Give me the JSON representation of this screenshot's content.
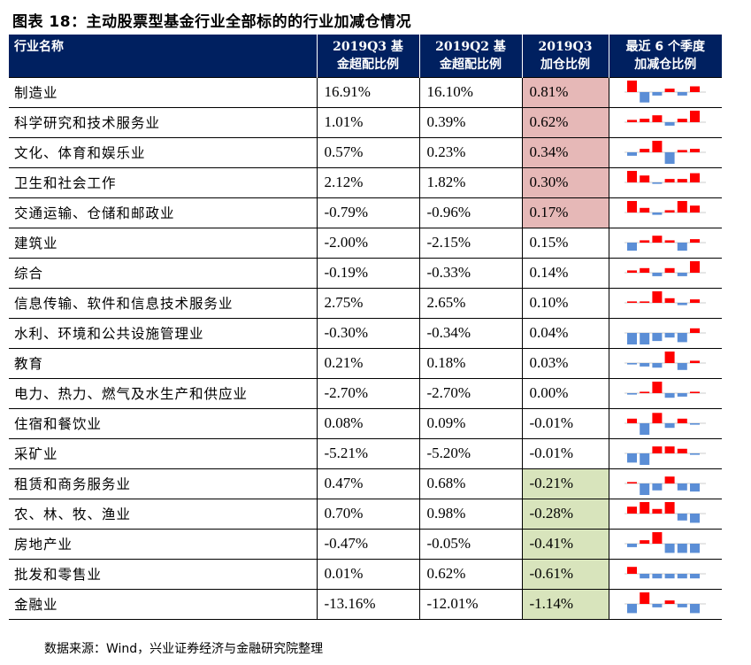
{
  "title": "图表 18：主动股票型基金行业全部标的的行业加减仓情况",
  "headers": {
    "industry": "行业名称",
    "q3_line1": "2019Q3 基",
    "q3_line2": "金超配比例",
    "q2_line1": "2019Q2 基",
    "q2_line2": "金超配比例",
    "chg_line1": "2019Q3",
    "chg_line2": "加仓比例",
    "spark_line1": "最近 6 个季度",
    "spark_line2": "加减仓比例"
  },
  "colors": {
    "header_bg": "#002060",
    "increase_bg": "#e6b8b7",
    "decrease_bg": "#d8e4bc",
    "bar_pos": "#ff0000",
    "bar_neg": "#5b8ed6"
  },
  "rows": [
    {
      "name": "制造业",
      "q3": "16.91%",
      "q2": "16.10%",
      "chg": "0.81%",
      "hl": "pos",
      "spark": [
        1.0,
        -0.9,
        -0.3,
        0.3,
        -0.3,
        0.5
      ]
    },
    {
      "name": "科学研究和技术服务业",
      "q3": "1.01%",
      "q2": "0.39%",
      "chg": "0.62%",
      "hl": "pos",
      "spark": [
        0.2,
        0.3,
        0.6,
        -0.3,
        0.3,
        1.0
      ]
    },
    {
      "name": "文化、体育和娱乐业",
      "q3": "0.57%",
      "q2": "0.23%",
      "chg": "0.34%",
      "hl": "pos",
      "spark": [
        -0.3,
        0.3,
        1.0,
        -1.0,
        0.2,
        0.3
      ]
    },
    {
      "name": "卫生和社会工作",
      "q3": "2.12%",
      "q2": "1.82%",
      "chg": "0.30%",
      "hl": "pos",
      "spark": [
        1.0,
        0.6,
        -0.1,
        0.3,
        0.3,
        0.8
      ]
    },
    {
      "name": "交通运输、仓储和邮政业",
      "q3": "-0.79%",
      "q2": "-0.96%",
      "chg": "0.17%",
      "hl": "pos",
      "spark": [
        1.0,
        0.4,
        -0.2,
        0.2,
        1.0,
        0.6
      ]
    },
    {
      "name": "建筑业",
      "q3": "-2.00%",
      "q2": "-2.15%",
      "chg": "0.15%",
      "hl": "",
      "spark": [
        -0.7,
        0.2,
        0.6,
        0.2,
        -0.7,
        0.3
      ]
    },
    {
      "name": "综合",
      "q3": "-0.19%",
      "q2": "-0.33%",
      "chg": "0.14%",
      "hl": "",
      "spark": [
        0.2,
        0.4,
        -0.3,
        0.4,
        -0.3,
        1.0
      ]
    },
    {
      "name": "信息传输、软件和信息技术服务业",
      "q3": "2.75%",
      "q2": "2.65%",
      "chg": "0.10%",
      "hl": "",
      "spark": [
        0.1,
        0.1,
        1.0,
        0.4,
        -0.2,
        0.3
      ]
    },
    {
      "name": "水利、环境和公共设施管理业",
      "q3": "-0.30%",
      "q2": "-0.34%",
      "chg": "0.04%",
      "hl": "",
      "spark": [
        -1.0,
        -1.0,
        -0.7,
        -0.4,
        -0.8,
        0.4
      ]
    },
    {
      "name": "教育",
      "q3": "0.21%",
      "q2": "0.18%",
      "chg": "0.03%",
      "hl": "",
      "spark": [
        -0.1,
        -0.3,
        -0.4,
        1.0,
        -0.6,
        0.2
      ]
    },
    {
      "name": "电力、热力、燃气及水生产和供应业",
      "q3": "-2.70%",
      "q2": "-2.70%",
      "chg": "0.00%",
      "hl": "",
      "spark": [
        -0.1,
        0.1,
        1.0,
        -0.4,
        -0.3,
        0.0
      ]
    },
    {
      "name": "住宿和餐饮业",
      "q3": "0.08%",
      "q2": "0.09%",
      "chg": "-0.01%",
      "hl": "",
      "spark": [
        0.4,
        -1.0,
        0.9,
        -0.4,
        0.4,
        -0.1
      ]
    },
    {
      "name": "采矿业",
      "q3": "-5.21%",
      "q2": "-5.20%",
      "chg": "-0.01%",
      "hl": "",
      "spark": [
        -0.8,
        -1.0,
        0.6,
        0.6,
        0.4,
        -0.1
      ]
    },
    {
      "name": "租赁和商务服务业",
      "q3": "0.47%",
      "q2": "0.68%",
      "chg": "-0.21%",
      "hl": "neg",
      "spark": [
        0.1,
        -1.0,
        -0.6,
        0.6,
        -0.6,
        -0.7
      ]
    },
    {
      "name": "农、林、牧、渔业",
      "q3": "0.70%",
      "q2": "0.98%",
      "chg": "-0.28%",
      "hl": "neg",
      "spark": [
        0.6,
        1.0,
        0.4,
        1.0,
        -0.6,
        -0.8
      ]
    },
    {
      "name": "房地产业",
      "q3": "-0.47%",
      "q2": "-0.05%",
      "chg": "-0.41%",
      "hl": "neg",
      "spark": [
        -0.3,
        0.3,
        1.0,
        -0.8,
        -0.8,
        -0.8
      ]
    },
    {
      "name": "批发和零售业",
      "q3": "0.01%",
      "q2": "0.62%",
      "chg": "-0.61%",
      "hl": "neg",
      "spark": [
        0.6,
        -0.4,
        -0.4,
        -0.4,
        -0.4,
        -0.4
      ]
    },
    {
      "name": "金融业",
      "q3": "-13.16%",
      "q2": "-12.01%",
      "chg": "-1.14%",
      "hl": "neg",
      "spark": [
        -0.8,
        1.0,
        -0.3,
        0.3,
        -0.3,
        -0.8
      ]
    }
  ],
  "source": "数据来源：Wind，兴业证券经济与金融研究院整理"
}
